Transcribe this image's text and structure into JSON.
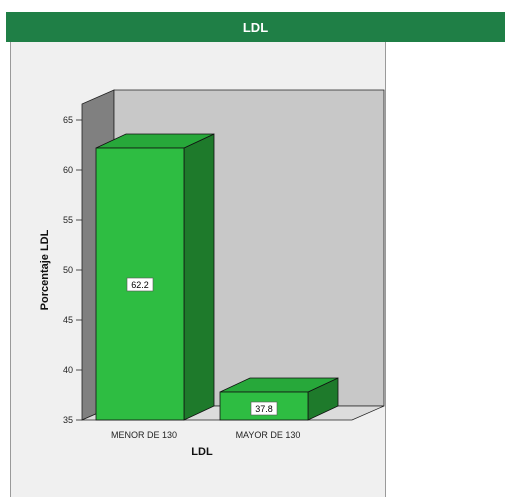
{
  "header": {
    "title": "LDL"
  },
  "chart_data": {
    "type": "bar",
    "categories": [
      "MENOR DE 130",
      "MAYOR DE 130"
    ],
    "values": [
      62.2,
      37.8
    ],
    "data_labels": [
      "62.2",
      "37.8"
    ],
    "xlabel": "LDL",
    "ylabel": "Porcentaje LDL",
    "ylim": [
      35,
      65
    ],
    "yticks": [
      "35",
      "40",
      "45",
      "50",
      "55",
      "60",
      "65"
    ],
    "grid": false,
    "legend": "none",
    "colors": {
      "bar_front": "#2ebd42",
      "bar_side": "#1e7a2b",
      "bar_top": "#27a83a",
      "back_wall": "#c8c8c8",
      "side_wall": "#808080",
      "header": "#1f7f46"
    }
  }
}
